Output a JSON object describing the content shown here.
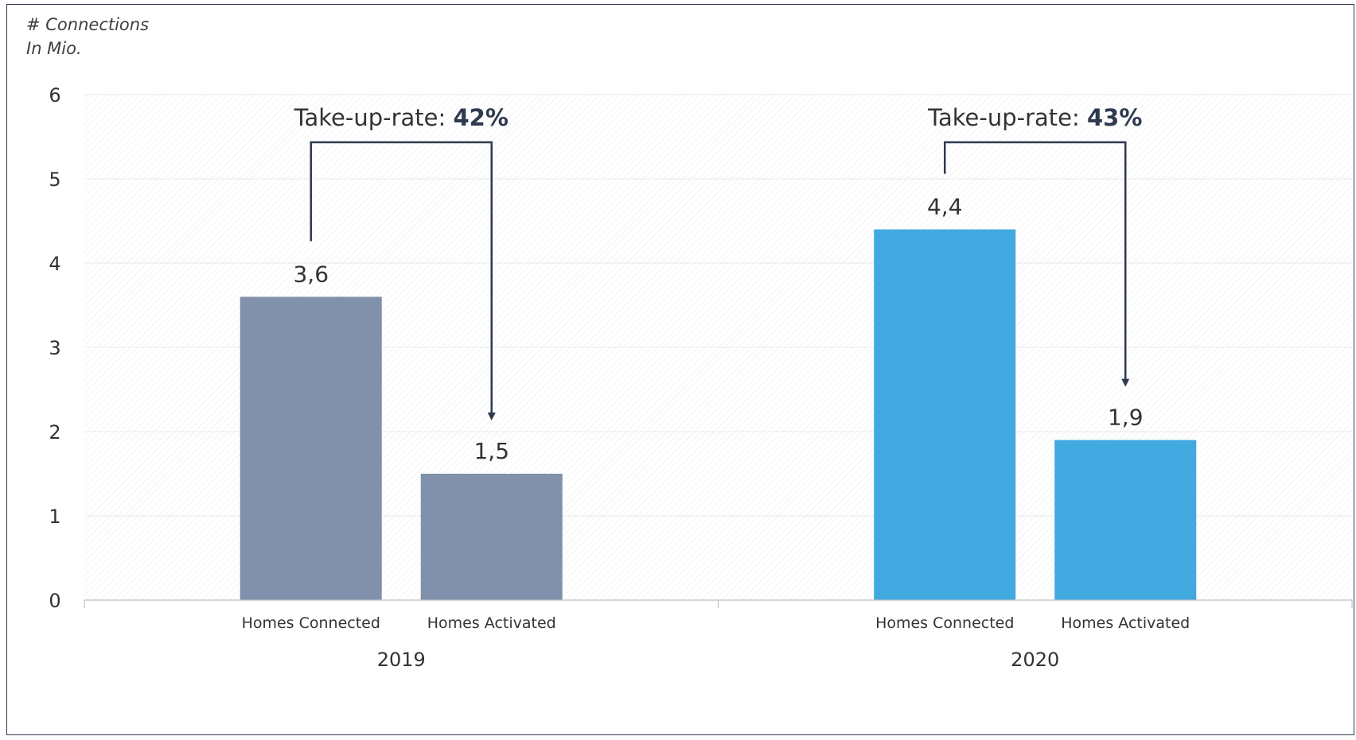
{
  "chart_data": {
    "type": "bar",
    "unit_label_line1": "# Connections",
    "unit_label_line2": "In Mio.",
    "ylim": [
      0,
      6
    ],
    "yticks": [
      "0",
      "1",
      "2",
      "3",
      "4",
      "5",
      "6"
    ],
    "grid": true,
    "groups": [
      {
        "label": "2019",
        "color": "#8190ab",
        "bars": [
          {
            "category": "Homes Connected",
            "value": 3.6,
            "label": "3,6"
          },
          {
            "category": "Homes Activated",
            "value": 1.5,
            "label": "1,5"
          }
        ],
        "annotation": {
          "prefix": "Take-up-rate: ",
          "value": "42%"
        }
      },
      {
        "label": "2020",
        "color": "#41a8e0",
        "bars": [
          {
            "category": "Homes Connected",
            "value": 4.4,
            "label": "4,4"
          },
          {
            "category": "Homes Activated",
            "value": 1.9,
            "label": "1,9"
          }
        ],
        "annotation": {
          "prefix": "Take-up-rate: ",
          "value": "43%"
        }
      }
    ]
  },
  "colors": {
    "frame": "#2f3a4f",
    "arrow": "#2f3a4f",
    "text": "#333333"
  }
}
